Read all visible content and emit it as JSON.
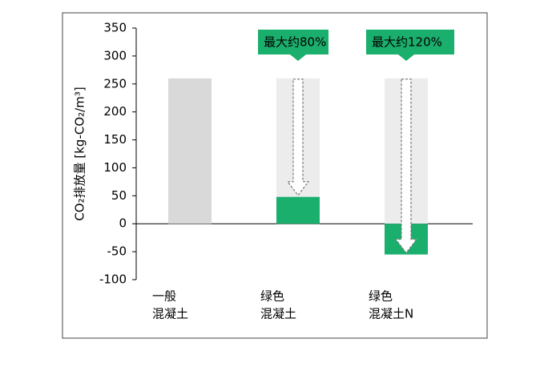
{
  "chart_data": {
    "type": "bar",
    "y_label": "CO₂排放量 [kg-CO₂/m³]",
    "categories": [
      [
        "一般",
        "混凝土"
      ],
      [
        "绿色",
        "混凝土"
      ],
      [
        "绿色",
        "混凝土N"
      ]
    ],
    "category_label_colors": [
      "#000000",
      "#000000",
      "#ff0000"
    ],
    "values": [
      260,
      48,
      -55
    ],
    "colors": [
      "#d9d9d9",
      "#1aaf6c",
      "#1aaf6c"
    ],
    "reference_values": [
      null,
      260,
      260
    ],
    "reference_color": "#ececec",
    "annotations": [
      null,
      "最大约80%",
      "最大约120%"
    ],
    "annotation_color": "#1aaf6c",
    "ylim": [
      -100,
      350
    ],
    "yticks": [
      -100,
      -50,
      0,
      50,
      100,
      150,
      200,
      250,
      300,
      350
    ]
  }
}
